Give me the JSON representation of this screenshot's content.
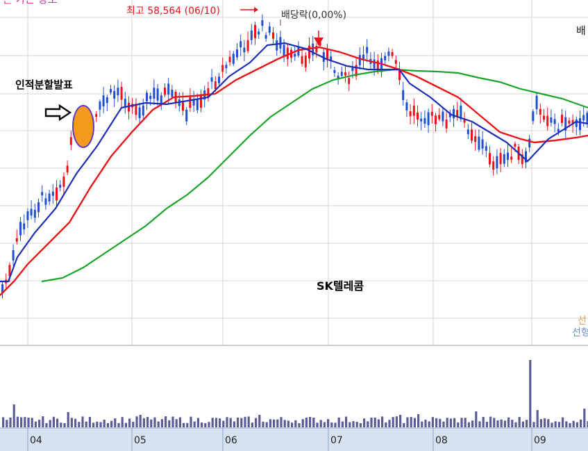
{
  "chart_data": {
    "type": "candlestick",
    "title": "SK텔레콤",
    "x_ticks": [
      "04",
      "05",
      "06",
      "07",
      "08",
      "09"
    ],
    "annotations": {
      "high": "최고 58,564 (06/10)",
      "dividend": "배당락(0,00%)",
      "split": "인적분할발표",
      "top_left_cut": "은 가는 방조",
      "right_cut_top": "배",
      "right_cut_1": "선",
      "right_cut_2": "선형"
    },
    "price": {
      "anchors": [
        [
          0,
          420
        ],
        [
          12,
          395
        ],
        [
          28,
          330
        ],
        [
          60,
          285
        ],
        [
          95,
          260
        ],
        [
          100,
          195
        ],
        [
          115,
          178
        ],
        [
          130,
          190
        ],
        [
          148,
          145
        ],
        [
          170,
          130
        ],
        [
          195,
          160
        ],
        [
          215,
          140
        ],
        [
          240,
          135
        ],
        [
          265,
          160
        ],
        [
          290,
          140
        ],
        [
          320,
          100
        ],
        [
          355,
          60
        ],
        [
          375,
          40
        ],
        [
          395,
          55
        ],
        [
          415,
          85
        ],
        [
          440,
          80
        ],
        [
          460,
          65
        ],
        [
          480,
          100
        ],
        [
          505,
          110
        ],
        [
          525,
          80
        ],
        [
          545,
          90
        ],
        [
          565,
          80
        ],
        [
          585,
          160
        ],
        [
          610,
          165
        ],
        [
          630,
          175
        ],
        [
          660,
          165
        ],
        [
          690,
          205
        ],
        [
          715,
          240
        ],
        [
          740,
          215
        ],
        [
          755,
          240
        ],
        [
          770,
          150
        ],
        [
          800,
          180
        ],
        [
          830,
          170
        ],
        [
          847,
          178
        ]
      ]
    },
    "ma_blue": [
      [
        0,
        405
      ],
      [
        12,
        405
      ],
      [
        25,
        370
      ],
      [
        50,
        335
      ],
      [
        80,
        300
      ],
      [
        110,
        250
      ],
      [
        140,
        210
      ],
      [
        175,
        155
      ],
      [
        210,
        148
      ],
      [
        240,
        150
      ],
      [
        270,
        145
      ],
      [
        300,
        140
      ],
      [
        330,
        110
      ],
      [
        360,
        90
      ],
      [
        385,
        65
      ],
      [
        410,
        62
      ],
      [
        440,
        70
      ],
      [
        470,
        85
      ],
      [
        500,
        95
      ],
      [
        530,
        100
      ],
      [
        555,
        100
      ],
      [
        575,
        100
      ],
      [
        590,
        120
      ],
      [
        620,
        140
      ],
      [
        650,
        165
      ],
      [
        680,
        175
      ],
      [
        705,
        190
      ],
      [
        730,
        205
      ],
      [
        760,
        232
      ],
      [
        790,
        200
      ],
      [
        830,
        175
      ],
      [
        847,
        178
      ]
    ],
    "ma_red": [
      [
        0,
        425
      ],
      [
        20,
        405
      ],
      [
        40,
        380
      ],
      [
        70,
        350
      ],
      [
        100,
        320
      ],
      [
        130,
        270
      ],
      [
        160,
        225
      ],
      [
        190,
        190
      ],
      [
        220,
        158
      ],
      [
        250,
        140
      ],
      [
        280,
        138
      ],
      [
        310,
        135
      ],
      [
        340,
        115
      ],
      [
        370,
        100
      ],
      [
        400,
        85
      ],
      [
        430,
        72
      ],
      [
        460,
        68
      ],
      [
        490,
        75
      ],
      [
        520,
        85
      ],
      [
        550,
        92
      ],
      [
        575,
        100
      ],
      [
        600,
        110
      ],
      [
        630,
        125
      ],
      [
        660,
        140
      ],
      [
        690,
        165
      ],
      [
        720,
        190
      ],
      [
        750,
        200
      ],
      [
        770,
        205
      ],
      [
        800,
        202
      ],
      [
        830,
        198
      ],
      [
        847,
        195
      ]
    ],
    "ma_green": [
      [
        60,
        405
      ],
      [
        90,
        400
      ],
      [
        120,
        385
      ],
      [
        150,
        365
      ],
      [
        180,
        345
      ],
      [
        210,
        325
      ],
      [
        240,
        300
      ],
      [
        270,
        280
      ],
      [
        300,
        255
      ],
      [
        330,
        225
      ],
      [
        360,
        195
      ],
      [
        390,
        168
      ],
      [
        420,
        148
      ],
      [
        450,
        128
      ],
      [
        480,
        115
      ],
      [
        510,
        108
      ],
      [
        540,
        103
      ],
      [
        570,
        100
      ],
      [
        600,
        102
      ],
      [
        630,
        103
      ],
      [
        660,
        105
      ],
      [
        690,
        112
      ],
      [
        720,
        118
      ],
      [
        750,
        128
      ],
      [
        780,
        135
      ],
      [
        810,
        142
      ],
      [
        847,
        155
      ]
    ],
    "volume_baseline": 615,
    "volume_spikes": [
      [
        17,
        582
      ],
      [
        97,
        593
      ],
      [
        200,
        597
      ],
      [
        372,
        597
      ],
      [
        575,
        597
      ],
      [
        600,
        596
      ],
      [
        683,
        592
      ],
      [
        763,
        518
      ],
      [
        772,
        590
      ],
      [
        840,
        588
      ]
    ]
  }
}
